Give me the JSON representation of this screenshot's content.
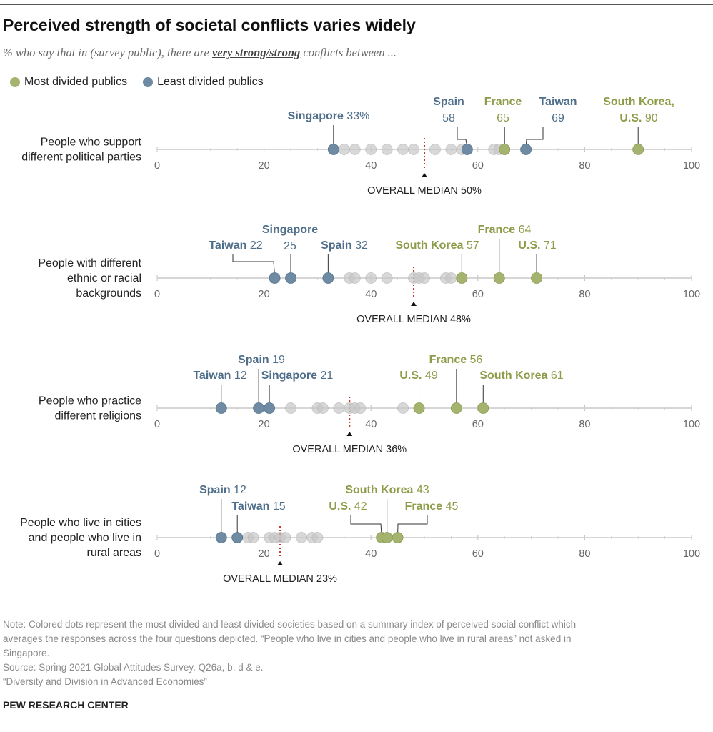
{
  "title": "Perceived strength of societal conflicts varies widely",
  "subtitle": {
    "prefix": "% who say that in (survey public), there are ",
    "emphasis": "very strong/strong",
    "suffix": " conflicts between ..."
  },
  "legend": [
    {
      "label": "Most divided publics",
      "color": "#a4b46e"
    },
    {
      "label": "Least divided publics",
      "color": "#6e8ba3"
    }
  ],
  "colors": {
    "most": "#a4b46e",
    "most_label": "#8c9c48",
    "least": "#6e8ba3",
    "least_label": "#4e6e8a",
    "other": "#c8c8c8",
    "median": "#c0392b"
  },
  "chart_data": {
    "type": "scatter",
    "xlim": [
      0,
      100
    ],
    "ticks": [
      "0",
      "20",
      "40",
      "60",
      "80",
      "100"
    ],
    "rows": [
      {
        "label": [
          "People who support",
          "different political parties"
        ],
        "median_label": "OVERALL MEDIAN 50%",
        "median": 50,
        "others": [
          35,
          37,
          40,
          43,
          46,
          48,
          52,
          55,
          57,
          63,
          64
        ],
        "highlights": [
          {
            "name": "Singapore",
            "value": 33,
            "value_text": "33%",
            "group": "least"
          },
          {
            "name": "Spain",
            "value": 58,
            "value_text": "58",
            "group": "least"
          },
          {
            "name": "France",
            "value": 65,
            "value_text": "65",
            "group": "most"
          },
          {
            "name": "Taiwan",
            "value": 69,
            "value_text": "69",
            "group": "least"
          },
          {
            "name": "South Korea, U.S.",
            "value": 90,
            "value_text": "90",
            "group": "most",
            "lines": [
              "South Korea,",
              "U.S."
            ]
          }
        ]
      },
      {
        "label": [
          "People with different",
          "ethnic or racial",
          "backgrounds"
        ],
        "median_label": "OVERALL MEDIAN 48%",
        "median": 48,
        "others": [
          36,
          37,
          40,
          43,
          48,
          49,
          50,
          54,
          55
        ],
        "highlights": [
          {
            "name": "Taiwan",
            "value": 22,
            "value_text": "22",
            "group": "least"
          },
          {
            "name": "Singapore",
            "value": 25,
            "value_text": "25",
            "group": "least",
            "lines": [
              "Singapore",
              ""
            ]
          },
          {
            "name": "Spain",
            "value": 32,
            "value_text": "32",
            "group": "least"
          },
          {
            "name": "South Korea",
            "value": 57,
            "value_text": "57",
            "group": "most"
          },
          {
            "name": "France",
            "value": 64,
            "value_text": "64",
            "group": "most"
          },
          {
            "name": "U.S.",
            "value": 71,
            "value_text": "71",
            "group": "most"
          }
        ]
      },
      {
        "label": [
          "People who practice",
          "different religions"
        ],
        "median_label": "OVERALL MEDIAN 36%",
        "median": 36,
        "others": [
          25,
          30,
          31,
          34,
          36,
          37,
          38,
          46
        ],
        "highlights": [
          {
            "name": "Taiwan",
            "value": 12,
            "value_text": "12",
            "group": "least"
          },
          {
            "name": "Spain",
            "value": 19,
            "value_text": "19",
            "group": "least"
          },
          {
            "name": "Singapore",
            "value": 21,
            "value_text": "21",
            "group": "least"
          },
          {
            "name": "U.S.",
            "value": 49,
            "value_text": "49",
            "group": "most"
          },
          {
            "name": "France",
            "value": 56,
            "value_text": "56",
            "group": "most"
          },
          {
            "name": "South Korea",
            "value": 61,
            "value_text": "61",
            "group": "most"
          }
        ]
      },
      {
        "label": [
          "People who live in cities",
          "and people who live in",
          "rural areas"
        ],
        "median_label": "OVERALL MEDIAN 23%",
        "median": 23,
        "others": [
          17,
          18,
          21,
          22,
          23,
          24,
          27,
          29,
          30
        ],
        "highlights": [
          {
            "name": "Spain",
            "value": 12,
            "value_text": "12",
            "group": "least"
          },
          {
            "name": "Taiwan",
            "value": 15,
            "value_text": "15",
            "group": "least"
          },
          {
            "name": "U.S.",
            "value": 42,
            "value_text": "42",
            "group": "most"
          },
          {
            "name": "South Korea",
            "value": 43,
            "value_text": "43",
            "group": "most"
          },
          {
            "name": "France",
            "value": 45,
            "value_text": "45",
            "group": "most"
          }
        ]
      }
    ]
  },
  "notes": [
    "Note: Colored dots represent the most divided and least divided societies based on a summary index of perceived social conflict which",
    "averages the responses across the four questions depicted. “People who live in cities and people who live in rural areas” not asked in",
    "Singapore.",
    "Source: Spring 2021 Global Attitudes Survey. Q26a, b, d & e.",
    "“Diversity and Division in Advanced Economies”"
  ],
  "brand": "PEW RESEARCH CENTER"
}
